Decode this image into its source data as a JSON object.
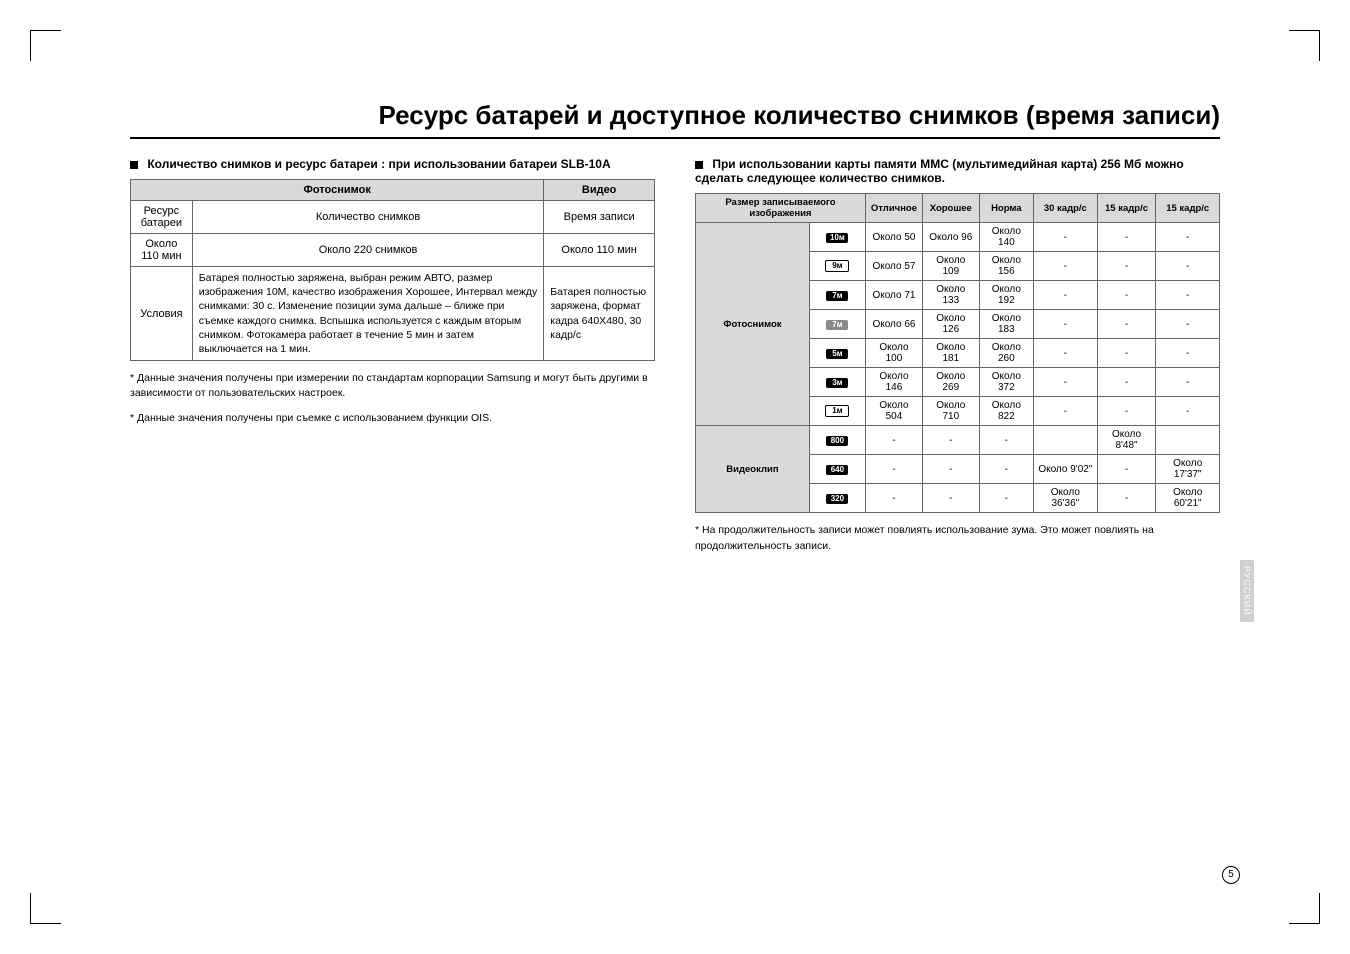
{
  "title": "Ресурс батарей и доступное количество снимков (время записи)",
  "left": {
    "heading": "Количество снимков и ресурс батареи : при использовании батареи SLB-10A",
    "t1": {
      "h_photo": "Фотоснимок",
      "h_video": "Видео",
      "r1c1": "Ресурс батареи",
      "r1c2": "Количество снимков",
      "r1c3": "Время записи",
      "r2c1": "Около 110 мин",
      "r2c2": "Около 220 снимков",
      "r2c3": "Около 110 мин",
      "r3c1": "Условия",
      "r3c2": "Батарея полностью заряжена, выбран режим АВТО, размер изображения 10M, качество изображения Хорошее, Интервал между снимками: 30 с. Изменение позиции зума дальше – ближе при съемке каждого снимка. Вспышка используется с каждым вторым снимком. Фотокамера работает в течение 5 мин и затем выключается на 1 мин.",
      "r3c3": "Батарея полностью заряжена, формат кадра 640X480, 30 кадр/с"
    },
    "note1": "* Данные значения получены при измерении по стандартам корпорации Samsung и могут быть другими в зависимости от пользовательских настроек.",
    "note2": "* Данные значения получены при съемке с использованием функции OIS."
  },
  "right": {
    "heading": "При использовании карты памяти MMC (мультимедийная карта) 256 Мб можно сделать следующее количество снимков.",
    "t2": {
      "h_size": "Размер записываемого изображения",
      "h_excellent": "Отличное",
      "h_good": "Хорошее",
      "h_norm": "Норма",
      "h_30": "30 кадр/с",
      "h_15a": "15 кадр/с",
      "h_15b": "15 кадр/с",
      "photo_label": "Фотоснимок",
      "video_label": "Видеоклип",
      "rows_photo": [
        {
          "icon": "10ᴍ",
          "cls": "",
          "c1": "Около 50",
          "c2": "Около 96",
          "c3": "Около 140",
          "c4": "-",
          "c5": "-",
          "c6": "-"
        },
        {
          "icon": "9ᴍ",
          "cls": "outline",
          "c1": "Около 57",
          "c2": "Около 109",
          "c3": "Около 156",
          "c4": "-",
          "c5": "-",
          "c6": "-"
        },
        {
          "icon": "7ᴍ",
          "cls": "",
          "c1": "Около 71",
          "c2": "Около 133",
          "c3": "Около 192",
          "c4": "-",
          "c5": "-",
          "c6": "-"
        },
        {
          "icon": "7ᴍ",
          "cls": "gray",
          "c1": "Около 66",
          "c2": "Около 126",
          "c3": "Около 183",
          "c4": "-",
          "c5": "-",
          "c6": "-"
        },
        {
          "icon": "5ᴍ",
          "cls": "",
          "c1": "Около 100",
          "c2": "Около 181",
          "c3": "Около 260",
          "c4": "-",
          "c5": "-",
          "c6": "-"
        },
        {
          "icon": "3ᴍ",
          "cls": "",
          "c1": "Около 146",
          "c2": "Около 269",
          "c3": "Около 372",
          "c4": "-",
          "c5": "-",
          "c6": "-"
        },
        {
          "icon": "1ᴍ",
          "cls": "outline",
          "c1": "Около 504",
          "c2": "Около 710",
          "c3": "Около 822",
          "c4": "-",
          "c5": "-",
          "c6": "-"
        }
      ],
      "rows_video": [
        {
          "icon": "800",
          "cls": "",
          "c1": "-",
          "c2": "-",
          "c3": "-",
          "c4": "",
          "c5": "Около 8'48\"",
          "c6": ""
        },
        {
          "icon": "640",
          "cls": "",
          "c1": "-",
          "c2": "-",
          "c3": "-",
          "c4": "Около 9'02\"",
          "c5": "-",
          "c6": "Около 17'37\""
        },
        {
          "icon": "320",
          "cls": "",
          "c1": "-",
          "c2": "-",
          "c3": "-",
          "c4": "Около 36'36\"",
          "c5": "-",
          "c6": "Около 60'21\""
        }
      ]
    },
    "footnote": "* На продолжительность записи может повлиять использование зума. Это может повлиять на продолжительность записи."
  },
  "sidetab": "РУССКИЙ",
  "pagenum": "5"
}
